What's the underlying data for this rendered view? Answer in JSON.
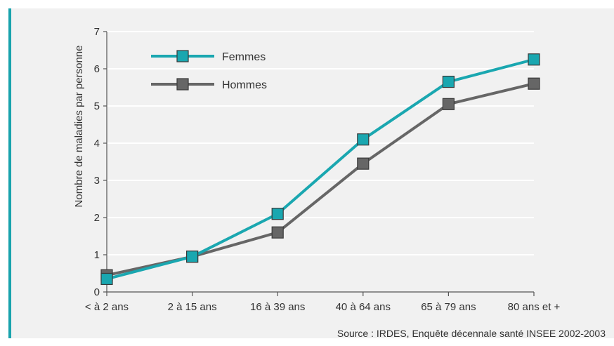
{
  "chart_data": {
    "type": "line",
    "title": "",
    "xlabel": "",
    "ylabel": "Nombre de maladies par personne",
    "categories": [
      "< à 2 ans",
      "2 à 15 ans",
      "16 à 39 ans",
      "40 à 64 ans",
      "65 à 79 ans",
      "80 ans et +"
    ],
    "ylim": [
      0,
      7
    ],
    "yticks": [
      "0",
      "1",
      "2",
      "3",
      "4",
      "5",
      "6",
      "7"
    ],
    "grid": "horizontal",
    "legend_position": "top-left",
    "series": [
      {
        "name": "Femmes",
        "color": "#1aa7b0",
        "marker": "square",
        "values": [
          0.35,
          0.95,
          2.1,
          4.1,
          5.65,
          6.25
        ]
      },
      {
        "name": "Hommes",
        "color": "#666666",
        "marker": "square",
        "values": [
          0.45,
          0.95,
          1.6,
          3.45,
          5.05,
          5.6
        ]
      }
    ],
    "source": "Source : IRDES, Enquête décennale santé INSEE 2002-2003"
  }
}
